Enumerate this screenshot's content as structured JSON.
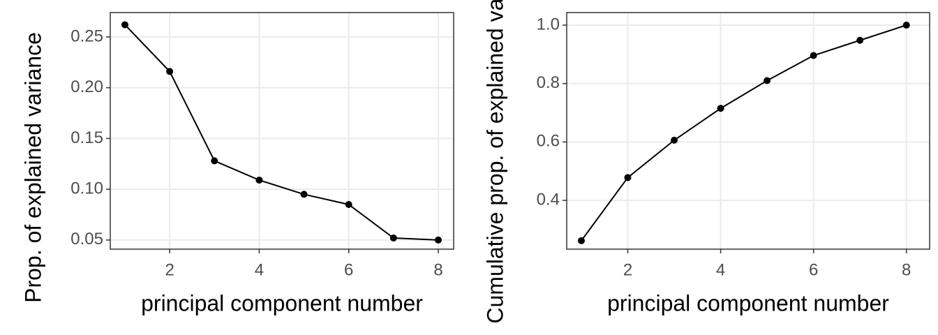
{
  "chart_data": [
    {
      "type": "line",
      "x_label": "principal component number",
      "y_label": "Prop. of explained variance",
      "x": [
        1,
        2,
        3,
        4,
        5,
        6,
        7,
        8
      ],
      "values": [
        0.262,
        0.216,
        0.128,
        0.109,
        0.095,
        0.085,
        0.052,
        0.05
      ],
      "color": "#000000",
      "xlim": [
        0.673,
        8.343
      ],
      "xticks": [
        2,
        4,
        6,
        8
      ],
      "ylim": [
        0.041,
        0.274
      ],
      "yticks": [
        {
          "value": 0.05,
          "label": "0.05"
        },
        {
          "value": 0.1,
          "label": "0.10"
        },
        {
          "value": 0.15,
          "label": "0.15"
        },
        {
          "value": 0.2,
          "label": "0.20"
        },
        {
          "value": 0.25,
          "label": "0.25"
        }
      ],
      "grid": true
    },
    {
      "type": "line",
      "x_label": "principal component number",
      "y_label": "Cumulative prop. of explained variance",
      "x": [
        1,
        2,
        3,
        4,
        5,
        6,
        7,
        8
      ],
      "values": [
        0.262,
        0.478,
        0.606,
        0.715,
        0.81,
        0.896,
        0.948,
        1.0
      ],
      "color": "#000000",
      "xlim": [
        0.685,
        8.5
      ],
      "xticks": [
        2,
        4,
        6,
        8
      ],
      "ylim": [
        0.233,
        1.043
      ],
      "yticks": [
        0.4,
        0.6,
        0.8,
        {
          "value": 1.0,
          "label": "1.0"
        }
      ],
      "grid": true
    }
  ]
}
